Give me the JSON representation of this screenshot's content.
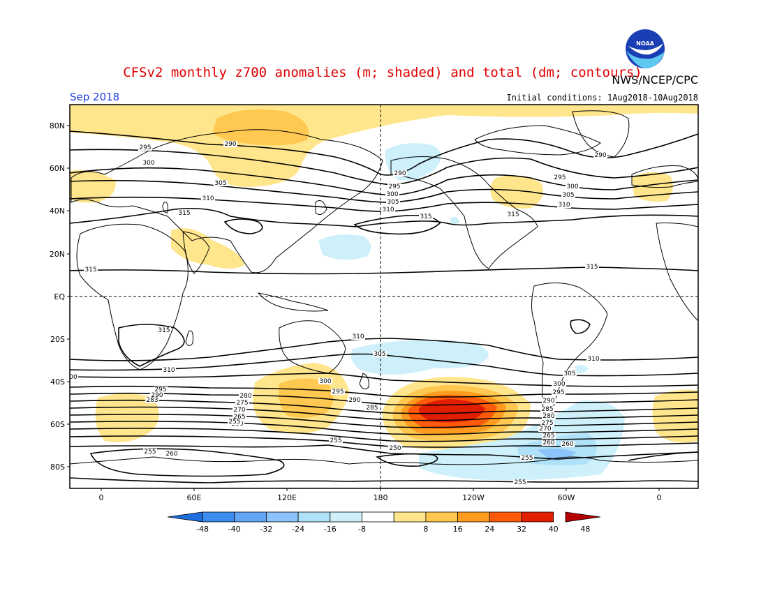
{
  "header": {
    "title": "CFSv2 monthly z700 anomalies (m; shaded) and total (dm; contours)",
    "credit": "NWS/NCEP/CPC",
    "month": "Sep 2018",
    "initial_conditions": "Initial conditions: 1Aug2018-10Aug2018",
    "logo_text": "NOAA"
  },
  "map": {
    "lat_ticks": [
      "80N",
      "60N",
      "40N",
      "20N",
      "EQ",
      "20S",
      "40S",
      "60S",
      "80S"
    ],
    "lon_ticks": [
      "0",
      "60E",
      "120E",
      "180",
      "120W",
      "60W",
      "0"
    ],
    "contour_labels": [
      {
        "text": "290"
      },
      {
        "text": "295"
      },
      {
        "text": "300"
      },
      {
        "text": "305"
      },
      {
        "text": "310"
      },
      {
        "text": "315"
      },
      {
        "text": "290"
      },
      {
        "text": "295"
      },
      {
        "text": "300"
      },
      {
        "text": "305"
      },
      {
        "text": "310"
      },
      {
        "text": "315"
      },
      {
        "text": "290"
      },
      {
        "text": "295"
      },
      {
        "text": "300"
      },
      {
        "text": "305"
      },
      {
        "text": "310"
      },
      {
        "text": "315"
      },
      {
        "text": "315"
      },
      {
        "text": "315"
      },
      {
        "text": "315"
      },
      {
        "text": "310"
      },
      {
        "text": "305"
      },
      {
        "text": "310"
      },
      {
        "text": "305"
      },
      {
        "text": "300"
      },
      {
        "text": "305"
      },
      {
        "text": "310"
      },
      {
        "text": "300"
      },
      {
        "text": "295"
      },
      {
        "text": "290"
      },
      {
        "text": "285"
      },
      {
        "text": "295"
      },
      {
        "text": "290"
      },
      {
        "text": "283"
      },
      {
        "text": "280"
      },
      {
        "text": "275"
      },
      {
        "text": "270"
      },
      {
        "text": "265"
      },
      {
        "text": "260"
      },
      {
        "text": "255"
      },
      {
        "text": "255"
      },
      {
        "text": "260"
      },
      {
        "text": "255"
      },
      {
        "text": "250"
      },
      {
        "text": "260"
      },
      {
        "text": "300"
      },
      {
        "text": "295"
      },
      {
        "text": "290"
      },
      {
        "text": "285"
      },
      {
        "text": "280"
      },
      {
        "text": "275"
      },
      {
        "text": "270"
      },
      {
        "text": "265"
      },
      {
        "text": "260"
      },
      {
        "text": "255"
      },
      {
        "text": "255"
      },
      {
        "text": "00"
      }
    ],
    "anomaly_colors": {
      "neg_48": "#1e6ee0",
      "neg_40": "#3c8cf0",
      "neg_32": "#64a5f5",
      "neg_24": "#8cc3fa",
      "neg_16": "#afe1f8",
      "neg_8": "#cdf0fa",
      "neutral": "#ffffff",
      "pos_8": "#ffe68c",
      "pos_16": "#ffc850",
      "pos_24": "#ff9b1e",
      "pos_32": "#ff5a0a",
      "pos_40": "#e11e00",
      "pos_48": "#b40000"
    }
  },
  "colorbar": {
    "ticks": [
      "-48",
      "-40",
      "-32",
      "-24",
      "-16",
      "-8",
      "8",
      "16",
      "24",
      "32",
      "40",
      "48"
    ]
  }
}
